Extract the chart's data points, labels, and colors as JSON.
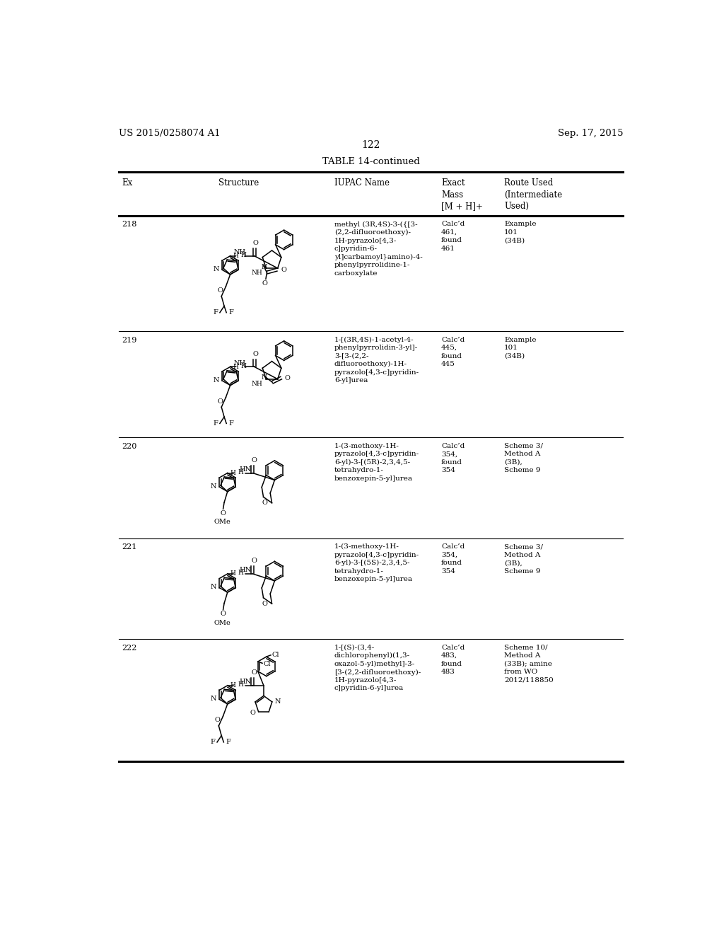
{
  "page_number": "122",
  "patent_number": "US 2015/0258074 A1",
  "patent_date": "Sep. 17, 2015",
  "table_title": "TABLE 14-continued",
  "background_color": "#ffffff",
  "rows": [
    {
      "ex": "218",
      "iupac": "methyl (3R,4S)-3-({[3-\n(2,2-difluoroethoxy)-\n1H-pyrazolo[4,3-\nc]pyridin-6-\nyl]carbamoyl}amino)-4-\nphenylpyrrolidine-1-\ncarboxylate",
      "exact_mass": "Calc’d\n461,\nfound\n461",
      "route": "Example\n101\n(34B)"
    },
    {
      "ex": "219",
      "iupac": "1-[(3R,4S)-1-acetyl-4-\nphenylpyrrolidin-3-yl]-\n3-[3-(2,2-\ndifluoroethoxy)-1H-\npyrazolo[4,3-c]pyridin-\n6-yl]urea",
      "exact_mass": "Calc’d\n445,\nfound\n445",
      "route": "Example\n101\n(34B)"
    },
    {
      "ex": "220",
      "iupac": "1-(3-methoxy-1H-\npyrazolo[4,3-c]pyridin-\n6-yl)-3-[(5R)-2,3,4,5-\ntetrahydro-1-\nbenzoxepin-5-yl]urea",
      "exact_mass": "Calc’d\n354,\nfound\n354",
      "route": "Scheme 3/\nMethod A\n(3B),\nScheme 9"
    },
    {
      "ex": "221",
      "iupac": "1-(3-methoxy-1H-\npyrazolo[4,3-c]pyridin-\n6-yl)-3-[(5S)-2,3,4,5-\ntetrahydro-1-\nbenzoxepin-5-yl]urea",
      "exact_mass": "Calc’d\n354,\nfound\n354",
      "route": "Scheme 3/\nMethod A\n(3B),\nScheme 9"
    },
    {
      "ex": "222",
      "iupac": "1-[(S)-(3,4-\ndichlorophenyl)(1,3-\noxazol-5-yl)methyl]-3-\n[3-(2,2-difluoroethoxy)-\n1H-pyrazolo[4,3-\nc]pyridin-6-yl]urea",
      "exact_mass": "Calc’d\n483,\nfound\n483",
      "route": "Scheme 10/\nMethod A\n(33B); amine\nfrom WO\n2012/118850"
    }
  ]
}
